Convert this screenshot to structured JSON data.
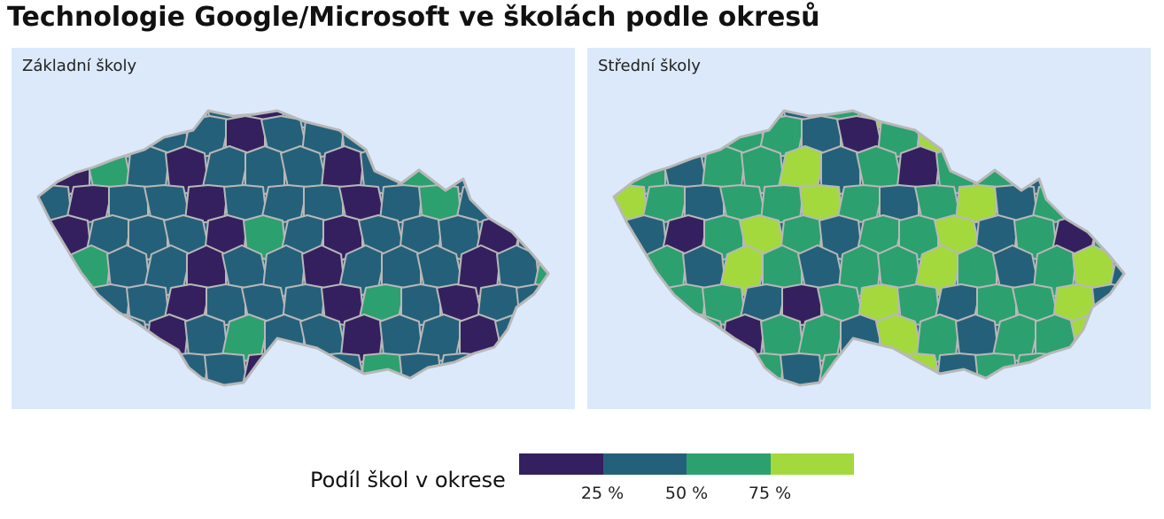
{
  "title": "Technologie Google/Microsoft ve školách podle okresů",
  "panels": [
    {
      "label": "Základní školy"
    },
    {
      "label": "Střední školy"
    }
  ],
  "legend": {
    "title": "Podíl škol v okrese",
    "ticks": [
      "25 %",
      "50 %",
      "75 %"
    ],
    "bins": [
      {
        "range": [
          0,
          25
        ],
        "color": "#35205f"
      },
      {
        "range": [
          25,
          50
        ],
        "color": "#25607a"
      },
      {
        "range": [
          50,
          75
        ],
        "color": "#2da06f"
      },
      {
        "range": [
          75,
          100
        ],
        "color": "#a3d93d"
      }
    ]
  },
  "colors": {
    "panel_bg": "#dbe9fb",
    "border": "#b8b8b8"
  }
}
